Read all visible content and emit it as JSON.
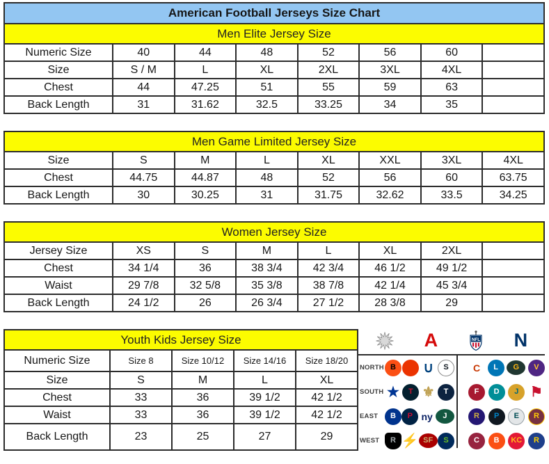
{
  "title": "American Football Jerseys Size Chart",
  "tables": [
    {
      "header": "Men Elite Jersey Size",
      "rows": [
        {
          "label": "Numeric Size",
          "values": [
            "40",
            "44",
            "48",
            "52",
            "56",
            "60",
            ""
          ]
        },
        {
          "label": "Size",
          "values": [
            "S / M",
            "L",
            "XL",
            "2XL",
            "3XL",
            "4XL",
            ""
          ]
        },
        {
          "label": "Chest",
          "values": [
            "44",
            "47.25",
            "51",
            "55",
            "59",
            "63",
            ""
          ]
        },
        {
          "label": "Back Length",
          "values": [
            "31",
            "31.62",
            "32.5",
            "33.25",
            "34",
            "35",
            ""
          ]
        }
      ]
    },
    {
      "header": "Men Game Limited Jersey Size",
      "rows": [
        {
          "label": "Size",
          "values": [
            "S",
            "M",
            "L",
            "XL",
            "XXL",
            "3XL",
            "4XL"
          ]
        },
        {
          "label": "Chest",
          "values": [
            "44.75",
            "44.87",
            "48",
            "52",
            "56",
            "60",
            "63.75"
          ]
        },
        {
          "label": "Back Length",
          "values": [
            "30",
            "30.25",
            "31",
            "31.75",
            "32.62",
            "33.5",
            "34.25"
          ]
        }
      ]
    },
    {
      "header": "Women Jersey Size",
      "rows": [
        {
          "label": "Jersey Size",
          "values": [
            "XS",
            "S",
            "M",
            "L",
            "XL",
            "2XL",
            ""
          ]
        },
        {
          "label": "Chest",
          "values": [
            "34 1/4",
            "36",
            "38 3/4",
            "42 3/4",
            "46 1/2",
            "49 1/2",
            ""
          ]
        },
        {
          "label": "Waist",
          "values": [
            "29 7/8",
            "32 5/8",
            "35 3/8",
            "38 7/8",
            "42 1/4",
            "45 3/4",
            ""
          ]
        },
        {
          "label": "Back Length",
          "values": [
            "24 1/2",
            "26",
            "26 3/4",
            "27 1/2",
            "28 3/8",
            "29",
            ""
          ]
        }
      ]
    },
    {
      "header": "Youth Kids Jersey Size",
      "rows": [
        {
          "label": "Numeric Size",
          "values": [
            "Size 8",
            "Size 10/12",
            "Size 14/16",
            "Size 18/20"
          ],
          "small": true
        },
        {
          "label": "Size",
          "values": [
            "S",
            "M",
            "L",
            "XL"
          ]
        },
        {
          "label": "Chest",
          "values": [
            "33",
            "36",
            "39 1/2",
            "42 1/2"
          ]
        },
        {
          "label": "Waist",
          "values": [
            "33",
            "36",
            "39 1/2",
            "42 1/2"
          ]
        },
        {
          "label": "Back Length",
          "values": [
            "23",
            "25",
            "27",
            "29"
          ]
        }
      ]
    }
  ],
  "nfl_panel": {
    "afc_letter": "A",
    "nfc_letter": "N",
    "shield_text": "NFL",
    "division_labels": [
      "NORTH",
      "SOUTH",
      "EAST",
      "WEST"
    ],
    "afc_teams": [
      [
        {
          "name": "bengals",
          "glyph": "B",
          "bg": "#fb4f14",
          "fg": "#000000"
        },
        {
          "name": "browns",
          "glyph": "",
          "bg": "#eb3300",
          "fg": "#ffffff"
        },
        {
          "name": "colts",
          "glyph": "∪",
          "fg": "#00427e",
          "shape": "glyph"
        },
        {
          "name": "steelers",
          "glyph": "S",
          "bg": "#ffffff",
          "fg": "#101820",
          "border": "#8a8a8a"
        }
      ],
      [
        {
          "name": "cowboys",
          "glyph": "★",
          "fg": "#003594",
          "shape": "glyph"
        },
        {
          "name": "texans",
          "glyph": "T",
          "bg": "#03202f",
          "fg": "#c41230"
        },
        {
          "name": "saints",
          "glyph": "⚜",
          "fg": "#c0a254",
          "shape": "glyph"
        },
        {
          "name": "titans",
          "glyph": "T",
          "bg": "#0c2340",
          "fg": "#ffffff"
        }
      ],
      [
        {
          "name": "bills",
          "glyph": "B",
          "bg": "#00338d",
          "fg": "#ffffff"
        },
        {
          "name": "patriots",
          "glyph": "P",
          "bg": "#002244",
          "fg": "#c60c30"
        },
        {
          "name": "giants",
          "glyph": "ny",
          "fg": "#0b2265",
          "shape": "text"
        },
        {
          "name": "jets",
          "glyph": "J",
          "bg": "#125740",
          "fg": "#ffffff",
          "shape": "oval"
        }
      ],
      [
        {
          "name": "raiders",
          "glyph": "R",
          "bg": "#000000",
          "fg": "#a5acaf",
          "shape": "shield-shape"
        },
        {
          "name": "chargers",
          "glyph": "⚡",
          "fg": "#f2b705",
          "shape": "glyph"
        },
        {
          "name": "49ers",
          "glyph": "SF",
          "bg": "#aa0000",
          "fg": "#c9b074",
          "shape": "oval"
        },
        {
          "name": "seahawks",
          "glyph": "S",
          "bg": "#002a5c",
          "fg": "#69be28"
        }
      ]
    ],
    "nfc_teams": [
      [
        {
          "name": "bears",
          "glyph": "C",
          "fg": "#c83803",
          "shape": "text"
        },
        {
          "name": "lions",
          "glyph": "L",
          "bg": "#0076b6",
          "fg": "#ffffff"
        },
        {
          "name": "packers",
          "glyph": "G",
          "bg": "#203731",
          "fg": "#ffb612",
          "shape": "oval"
        },
        {
          "name": "vikings",
          "glyph": "V",
          "bg": "#4f2683",
          "fg": "#ffc62f"
        }
      ],
      [
        {
          "name": "falcons",
          "glyph": "F",
          "bg": "#a71930",
          "fg": "#ffffff"
        },
        {
          "name": "dolphins",
          "glyph": "D",
          "bg": "#008e97",
          "fg": "#ffffff"
        },
        {
          "name": "jaguars",
          "glyph": "J",
          "bg": "#d7a22a",
          "fg": "#006778"
        },
        {
          "name": "buccaneers",
          "glyph": "⚑",
          "fg": "#c8102e",
          "shape": "glyph"
        }
      ],
      [
        {
          "name": "ravens",
          "glyph": "R",
          "bg": "#241773",
          "fg": "#d0b240"
        },
        {
          "name": "panthers",
          "glyph": "P",
          "bg": "#101820",
          "fg": "#0085ca"
        },
        {
          "name": "eagles",
          "glyph": "E",
          "bg": "#e3e6e8",
          "fg": "#004c54",
          "border": "#97a1a7"
        },
        {
          "name": "redskins",
          "glyph": "R",
          "bg": "#773141",
          "fg": "#ffcb05",
          "border": "#ffcb05"
        }
      ],
      [
        {
          "name": "cardinals",
          "glyph": "C",
          "bg": "#97233f",
          "fg": "#ffffff"
        },
        {
          "name": "broncos",
          "glyph": "B",
          "bg": "#fb4f14",
          "fg": "#ffffff"
        },
        {
          "name": "chiefs",
          "glyph": "KC",
          "bg": "#e31837",
          "fg": "#ffb81c"
        },
        {
          "name": "rams",
          "glyph": "R",
          "bg": "#1e3f8b",
          "fg": "#ffd100"
        }
      ]
    ]
  },
  "colors": {
    "title_bg": "#93c6f2",
    "band_bg": "#fcfc00",
    "border": "#2b2b2b",
    "afc_red": "#d50a0a",
    "nfc_blue": "#013369",
    "division_label": "#3c3c3c"
  }
}
